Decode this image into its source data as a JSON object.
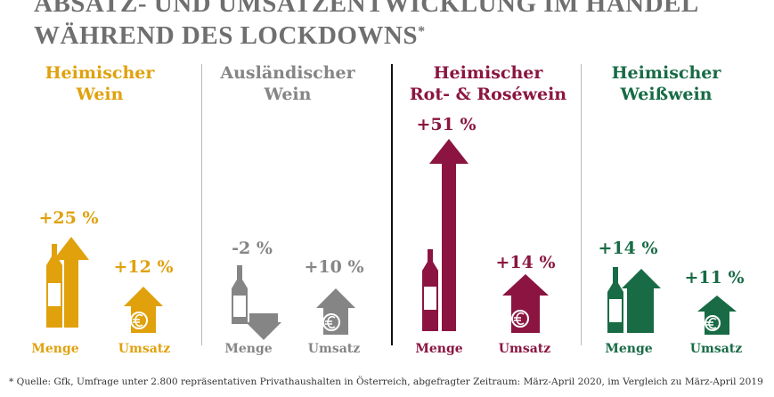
{
  "title": {
    "line1": "ABSATZ- UND UMSATZENTWICKLUNG IM HANDEL",
    "line2": "WÄHREND DES LOCKDOWNS",
    "mark": "*"
  },
  "columns": [
    {
      "title1": "Heimischer",
      "title2": "Wein",
      "color": "#e0a10d",
      "menge": "+25 %",
      "umsatz": "+12 %",
      "menge_label": "Menge",
      "umsatz_label": "Umsatz"
    },
    {
      "title1": "Ausländischer",
      "title2": "Wein",
      "color": "#858585",
      "menge": "-2 %",
      "umsatz": "+10 %",
      "menge_label": "Menge",
      "umsatz_label": "Umsatz"
    },
    {
      "title1": "Heimischer",
      "title2": "Rot- & Roséwein",
      "color": "#8b1540",
      "menge": "+51 %",
      "umsatz": "+14 %",
      "menge_label": "Menge",
      "umsatz_label": "Umsatz"
    },
    {
      "title1": "Heimischer",
      "title2": "Weißwein",
      "color": "#186b45",
      "menge": "+14 %",
      "umsatz": "+11 %",
      "menge_label": "Menge",
      "umsatz_label": "Umsatz"
    }
  ],
  "footnote": "* Quelle: Gfk, Umfrage unter 2.800 repräsentativen Privathaushalten in Österreich, abgefragter Zeitraum: März-April 2020, im Vergleich zu März-April 2019"
}
